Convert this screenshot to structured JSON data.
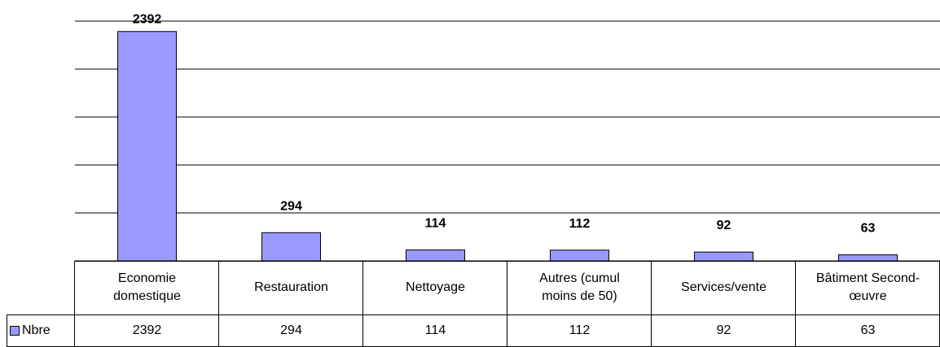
{
  "chart_data": {
    "type": "bar",
    "categories": [
      "Economie domestique",
      "Restauration",
      "Nettoyage",
      "Autres (cumul moins de 50)",
      "Services/vente",
      "Bâtiment Second-œuvre"
    ],
    "series": [
      {
        "name": "Nbre",
        "color": "#9999ff",
        "values": [
          2392,
          294,
          114,
          112,
          92,
          63
        ]
      }
    ],
    "ylim": [
      0,
      2500
    ],
    "yticks": [
      0,
      500,
      1000,
      1500,
      2000,
      2500
    ],
    "grid": true
  }
}
